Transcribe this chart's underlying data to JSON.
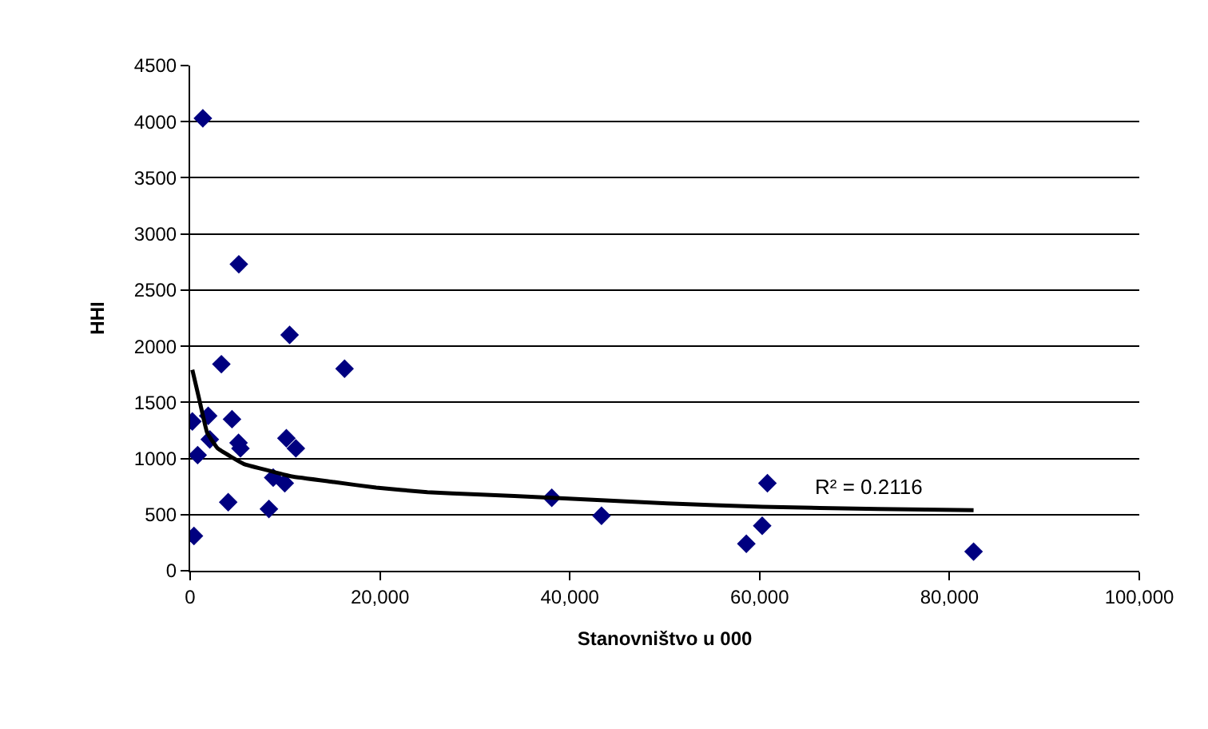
{
  "chart_data": {
    "type": "scatter",
    "xlabel": "Stanovništvo u 000",
    "ylabel": "HHI",
    "xlim": [
      0,
      100000
    ],
    "xticks": [
      {
        "value": 0,
        "label": "0"
      },
      {
        "value": 20000,
        "label": "20,000"
      },
      {
        "value": 40000,
        "label": "40,000"
      },
      {
        "value": 60000,
        "label": "60,000"
      },
      {
        "value": 80000,
        "label": "80,000"
      },
      {
        "value": 100000,
        "label": "100,000"
      }
    ],
    "ylim": [
      0,
      4500
    ],
    "yticks": [
      0,
      500,
      1000,
      1500,
      2000,
      2500,
      3000,
      3500,
      4000,
      4500
    ],
    "grid": "y",
    "marker": "diamond",
    "series": [
      {
        "color": "#000080",
        "x": [
          1340,
          5130,
          10480,
          3290,
          16270,
          230,
          1900,
          4410,
          790,
          2070,
          5100,
          5300,
          10140,
          11140,
          4010,
          8300,
          8750,
          9970,
          400,
          38100,
          43340,
          60820,
          60270,
          58600,
          82540
        ],
        "values": [
          4030,
          2730,
          2100,
          1840,
          1800,
          1330,
          1380,
          1350,
          1030,
          1170,
          1140,
          1090,
          1180,
          1090,
          610,
          550,
          830,
          780,
          310,
          650,
          490,
          780,
          400,
          240,
          170
        ]
      },
      {
        "type": "line",
        "color": "#000000",
        "marker": "none",
        "x": [
          230,
          950,
          1790,
          2900,
          5680,
          7920,
          10700,
          15150,
          19600,
          25000,
          30190,
          38100,
          50240,
          60270,
          72470,
          82540
        ],
        "values": [
          1790,
          1530,
          1230,
          1090,
          950,
          900,
          840,
          790,
          740,
          700,
          680,
          650,
          600,
          570,
          550,
          540
        ]
      }
    ],
    "annotations": [
      "R² = 0.2116"
    ]
  }
}
